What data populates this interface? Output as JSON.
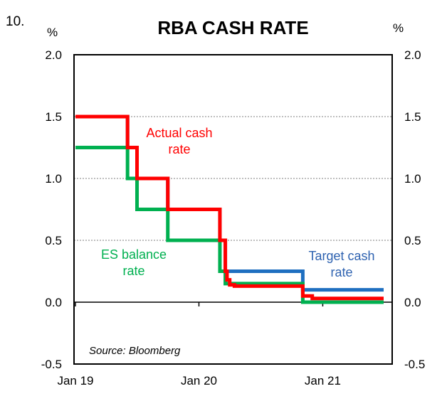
{
  "figure_number": "10.",
  "chart_data": {
    "type": "line",
    "title": "RBA CASH RATE",
    "ylabel_left": "%",
    "ylabel_right": "%",
    "ylim": [
      -0.5,
      2.0
    ],
    "yticks": [
      -0.5,
      0.0,
      0.5,
      1.0,
      1.5,
      2.0
    ],
    "ytick_labels": [
      "-0.5",
      "0.0",
      "0.5",
      "1.0",
      "1.5",
      "2.0"
    ],
    "xlim": [
      "2019-01-01",
      "2021-06-30"
    ],
    "xticks": [
      "2019-01",
      "2020-01",
      "2021-01"
    ],
    "xtick_labels": [
      "Jan 19",
      "Jan 20",
      "Jan 21"
    ],
    "grid": "horizontal dotted",
    "source": "Source: Bloomberg",
    "series": [
      {
        "name": "Target cash rate",
        "color": "#1f6fc0",
        "step": true,
        "points": [
          [
            "2019-01-01",
            1.5
          ],
          [
            "2019-06-04",
            1.25
          ],
          [
            "2019-07-02",
            1.0
          ],
          [
            "2019-10-01",
            0.75
          ],
          [
            "2020-03-03",
            0.5
          ],
          [
            "2020-03-19",
            0.25
          ],
          [
            "2020-11-03",
            0.1
          ],
          [
            "2021-06-30",
            0.1
          ]
        ]
      },
      {
        "name": "ES balance rate",
        "color": "#00b050",
        "step": true,
        "points": [
          [
            "2019-01-01",
            1.25
          ],
          [
            "2019-06-04",
            1.0
          ],
          [
            "2019-07-02",
            0.75
          ],
          [
            "2019-10-01",
            0.5
          ],
          [
            "2020-03-03",
            0.25
          ],
          [
            "2020-03-19",
            0.15
          ],
          [
            "2020-11-03",
            0.0
          ],
          [
            "2021-06-30",
            0.0
          ]
        ]
      },
      {
        "name": "Actual cash rate",
        "color": "#ff0000",
        "step": true,
        "points": [
          [
            "2019-01-01",
            1.5
          ],
          [
            "2019-06-04",
            1.25
          ],
          [
            "2019-07-02",
            1.0
          ],
          [
            "2019-10-01",
            0.75
          ],
          [
            "2020-03-03",
            0.5
          ],
          [
            "2020-03-19",
            0.25
          ],
          [
            "2020-03-24",
            0.18
          ],
          [
            "2020-04-01",
            0.14
          ],
          [
            "2020-04-15",
            0.13
          ],
          [
            "2020-11-03",
            0.05
          ],
          [
            "2020-12-01",
            0.03
          ],
          [
            "2021-06-30",
            0.03
          ]
        ]
      }
    ],
    "annotations": [
      {
        "series": "Actual cash rate",
        "text": "Actual cash\nrate"
      },
      {
        "series": "ES balance rate",
        "text": "ES balance\nrate"
      },
      {
        "series": "Target cash rate",
        "text": "Target cash\nrate"
      }
    ]
  }
}
